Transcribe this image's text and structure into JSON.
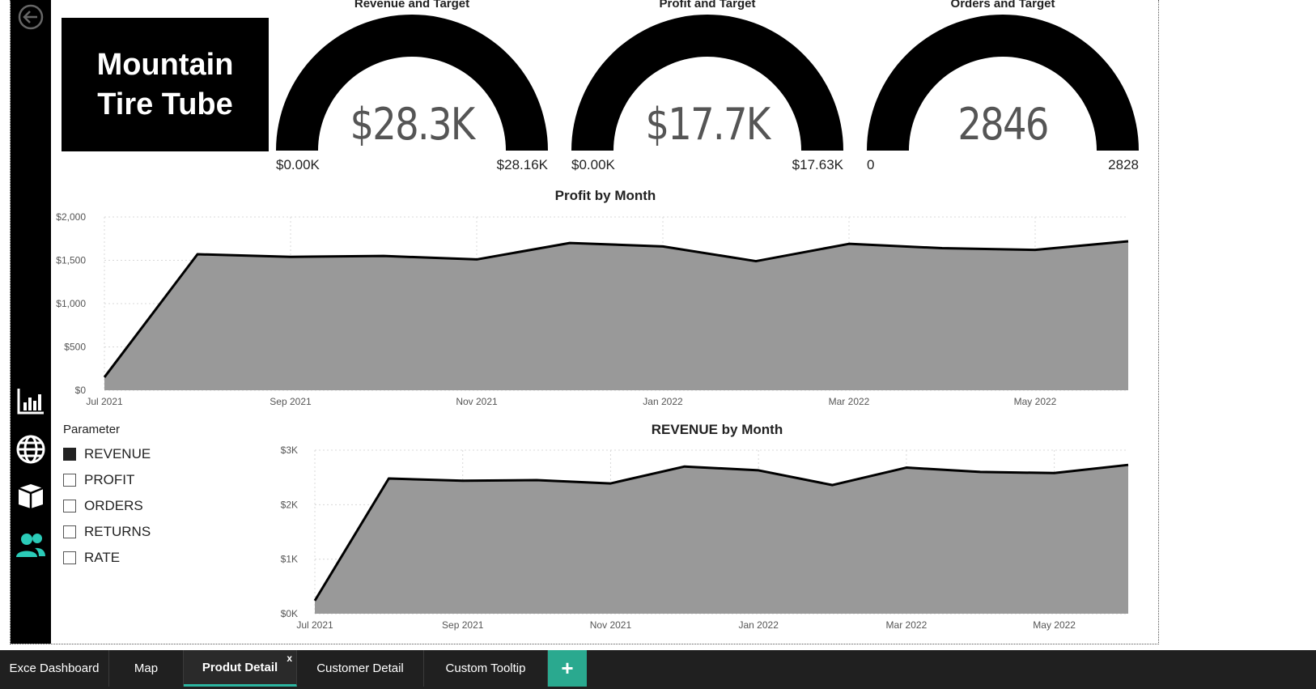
{
  "logo": {
    "line1": "Mountain",
    "line2": "Tire Tube"
  },
  "gauges": [
    {
      "title": "Revenue and Target",
      "value_label": "$28.3K",
      "min_label": "$0.00K",
      "max_label": "$28.16K",
      "value": 28.3,
      "max": 28.16
    },
    {
      "title": "Profit and Target",
      "value_label": "$17.7K",
      "min_label": "$0.00K",
      "max_label": "$17.63K",
      "value": 17.7,
      "max": 17.63
    },
    {
      "title": "Orders and Target",
      "value_label": "2846",
      "min_label": "0",
      "max_label": "2828",
      "value": 2846,
      "max": 2828
    }
  ],
  "slicer": {
    "title": "Parameter",
    "items": [
      {
        "label": "REVENUE",
        "checked": true
      },
      {
        "label": "PROFIT",
        "checked": false
      },
      {
        "label": "ORDERS",
        "checked": false
      },
      {
        "label": "RETURNS",
        "checked": false
      },
      {
        "label": "RATE",
        "checked": false
      }
    ]
  },
  "rail_icons": [
    "back-arrow-icon",
    "bar-chart-icon",
    "globe-icon",
    "box-icon",
    "users-icon"
  ],
  "colors": {
    "area_fill": "#999999",
    "line": "#000000",
    "accent": "#2bb5a0",
    "users_icon": "#2bcbb8"
  },
  "tabs": [
    {
      "label": "Exce Dashboard",
      "active": false
    },
    {
      "label": "Map",
      "active": false
    },
    {
      "label": "Produt Detail",
      "active": true,
      "close": "x"
    },
    {
      "label": "Customer Detail",
      "active": false
    },
    {
      "label": "Custom Tooltip",
      "active": false
    }
  ],
  "add_tab_label": "+",
  "chart_data": [
    {
      "type": "area",
      "title": "Profit by Month",
      "x": [
        "Jul 2021",
        "Aug 2021",
        "Sep 2021",
        "Oct 2021",
        "Nov 2021",
        "Dec 2021",
        "Jan 2022",
        "Feb 2022",
        "Mar 2022",
        "Apr 2022",
        "May 2022",
        "Jun 2022"
      ],
      "values": [
        150,
        1570,
        1540,
        1550,
        1510,
        1700,
        1660,
        1490,
        1690,
        1640,
        1620,
        1720
      ],
      "x_tick_labels": [
        "Jul 2021",
        "Sep 2021",
        "Nov 2021",
        "Jan 2022",
        "Mar 2022",
        "May 2022"
      ],
      "y_ticks": [
        0,
        500,
        1000,
        1500,
        2000
      ],
      "y_tick_labels": [
        "$0",
        "$500",
        "$1,000",
        "$1,500",
        "$2,000"
      ],
      "ylim": [
        0,
        2000
      ],
      "grid": true
    },
    {
      "type": "area",
      "title": "REVENUE by Month",
      "x": [
        "Jul 2021",
        "Aug 2021",
        "Sep 2021",
        "Oct 2021",
        "Nov 2021",
        "Dec 2021",
        "Jan 2022",
        "Feb 2022",
        "Mar 2022",
        "Apr 2022",
        "May 2022",
        "Jun 2022"
      ],
      "values": [
        240,
        2480,
        2440,
        2450,
        2390,
        2700,
        2630,
        2360,
        2680,
        2600,
        2580,
        2730
      ],
      "x_tick_labels": [
        "Jul 2021",
        "Sep 2021",
        "Nov 2021",
        "Jan 2022",
        "Mar 2022",
        "May 2022"
      ],
      "y_ticks": [
        0,
        1000,
        2000,
        3000
      ],
      "y_tick_labels": [
        "$0K",
        "$1K",
        "$2K",
        "$3K"
      ],
      "ylim": [
        0,
        3000
      ],
      "grid": true
    }
  ]
}
